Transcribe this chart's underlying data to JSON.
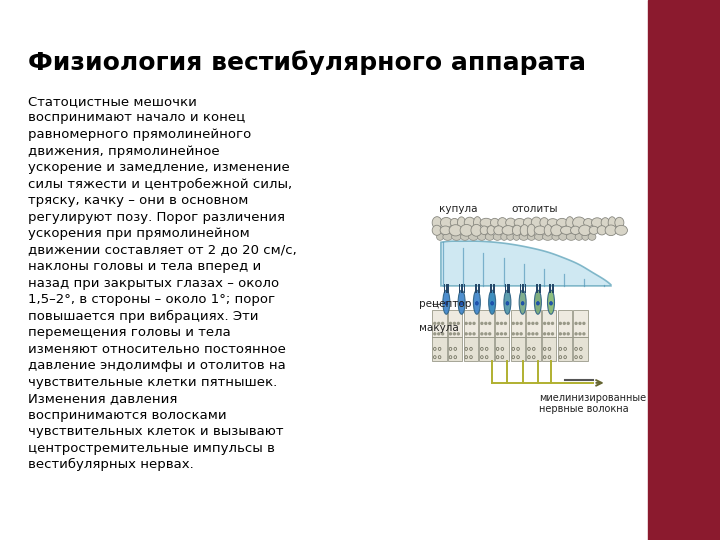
{
  "title": "Физиология вестибулярного аппарата",
  "title_fontsize": 18,
  "body_text": "Статоцистные мешочки\nвоспринимают начало и конец\nравномерного прямолинейного\nдвижения, прямолинейное\nускорение и замедление, изменение\nсилы тяжести и центробежной силы,\nтряску, качку – они в основном\nрегулируют позу. Порог различения\nускорения при прямолинейном\nдвижении составляет от 2 до 20 см/с,\nнаклоны головы и тела вперед и\nназад при закрытых глазах – около\n1,5–2°, в стороны – около 1°; порог\nповышается при вибрациях. Эти\nперемещения головы и тела\nизменяют относительно постоянное\nдавление эндолимфы и отолитов на\nчувствительные клетки пятнышек.\nИзменения давления\nвоспринимаются волосками\nчувствительных клеток и вызывают\nцентростремительные импульсы в\nвестибулярных нервах.",
  "body_fontsize": 9.5,
  "background_color": "#ffffff",
  "right_bar_color": "#8b1a2e",
  "label_kupula": "купула",
  "label_otolity": "отолиты",
  "label_receptor": "рецептор",
  "label_makula": "макула",
  "label_nerve": "миелинизированные\nнервные волокна",
  "label_fontsize": 7.5
}
